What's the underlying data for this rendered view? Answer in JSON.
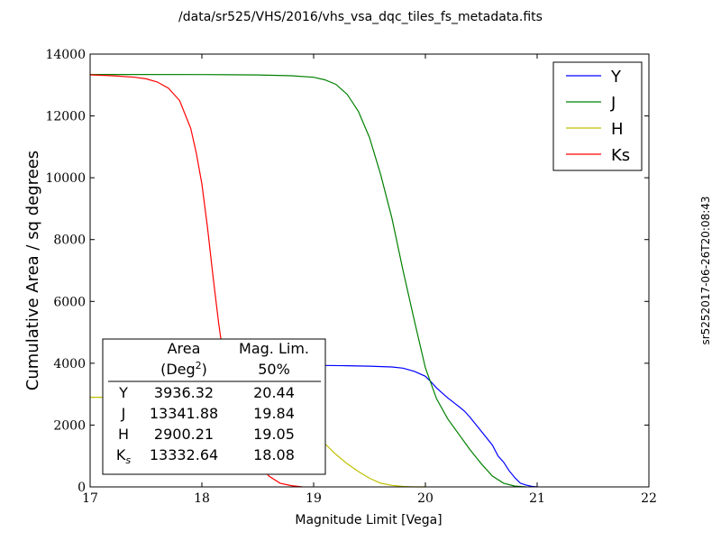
{
  "chart_data": {
    "type": "line",
    "title": "/data/sr525/VHS/2016/vhs_vsa_dqc_tiles_fs_metadata.fits",
    "xlabel": "Magnitude Limit [Vega]",
    "ylabel": "Cumulative Area / sq degrees",
    "side_label": "sr5252017-06-26T20:08:43",
    "xlim": [
      17,
      22
    ],
    "ylim": [
      0,
      14000
    ],
    "xticks": [
      17,
      18,
      19,
      20,
      21,
      22
    ],
    "yticks": [
      0,
      2000,
      4000,
      6000,
      8000,
      10000,
      12000,
      14000
    ],
    "grid": false,
    "legend_position": "top-right",
    "series": [
      {
        "name": "Y",
        "color": "#0000ff",
        "points": [
          [
            18.35,
            3936
          ],
          [
            18.6,
            3936
          ],
          [
            19.0,
            3932
          ],
          [
            19.3,
            3920
          ],
          [
            19.5,
            3905
          ],
          [
            19.7,
            3880
          ],
          [
            19.8,
            3840
          ],
          [
            19.9,
            3740
          ],
          [
            20.0,
            3580
          ],
          [
            20.05,
            3400
          ],
          [
            20.1,
            3200
          ],
          [
            20.2,
            2880
          ],
          [
            20.3,
            2600
          ],
          [
            20.35,
            2450
          ],
          [
            20.4,
            2250
          ],
          [
            20.5,
            1800
          ],
          [
            20.6,
            1350
          ],
          [
            20.65,
            1000
          ],
          [
            20.7,
            800
          ],
          [
            20.75,
            520
          ],
          [
            20.8,
            300
          ],
          [
            20.85,
            120
          ],
          [
            20.9,
            60
          ],
          [
            20.95,
            20
          ],
          [
            21.0,
            0
          ]
        ]
      },
      {
        "name": "J",
        "color": "#008000",
        "points": [
          [
            17.0,
            13340
          ],
          [
            18.0,
            13338
          ],
          [
            18.5,
            13325
          ],
          [
            18.8,
            13300
          ],
          [
            19.0,
            13250
          ],
          [
            19.1,
            13170
          ],
          [
            19.2,
            13020
          ],
          [
            19.3,
            12700
          ],
          [
            19.4,
            12150
          ],
          [
            19.5,
            11300
          ],
          [
            19.6,
            10100
          ],
          [
            19.7,
            8700
          ],
          [
            19.8,
            7000
          ],
          [
            19.9,
            5400
          ],
          [
            20.0,
            3850
          ],
          [
            20.1,
            2850
          ],
          [
            20.2,
            2200
          ],
          [
            20.3,
            1700
          ],
          [
            20.4,
            1200
          ],
          [
            20.5,
            750
          ],
          [
            20.6,
            350
          ],
          [
            20.7,
            120
          ],
          [
            20.8,
            25
          ],
          [
            20.9,
            0
          ]
        ]
      },
      {
        "name": "H",
        "color": "#bfbf00",
        "points": [
          [
            17.0,
            2900
          ],
          [
            17.5,
            2900
          ],
          [
            18.0,
            2895
          ],
          [
            18.2,
            2880
          ],
          [
            18.4,
            2840
          ],
          [
            18.6,
            2700
          ],
          [
            18.75,
            2450
          ],
          [
            18.9,
            2100
          ],
          [
            19.0,
            1750
          ],
          [
            19.1,
            1400
          ],
          [
            19.2,
            1050
          ],
          [
            19.3,
            750
          ],
          [
            19.4,
            500
          ],
          [
            19.5,
            280
          ],
          [
            19.6,
            120
          ],
          [
            19.7,
            50
          ],
          [
            19.8,
            15
          ],
          [
            19.9,
            0
          ],
          [
            20.0,
            0
          ]
        ]
      },
      {
        "name": "Ks",
        "color": "#ff0000",
        "points": [
          [
            17.0,
            13330
          ],
          [
            17.2,
            13300
          ],
          [
            17.4,
            13250
          ],
          [
            17.5,
            13200
          ],
          [
            17.6,
            13100
          ],
          [
            17.7,
            12900
          ],
          [
            17.8,
            12500
          ],
          [
            17.9,
            11600
          ],
          [
            17.95,
            10800
          ],
          [
            18.0,
            9800
          ],
          [
            18.05,
            8400
          ],
          [
            18.1,
            6800
          ],
          [
            18.15,
            5300
          ],
          [
            18.2,
            4000
          ],
          [
            18.3,
            2500
          ],
          [
            18.4,
            1500
          ],
          [
            18.5,
            800
          ],
          [
            18.6,
            350
          ],
          [
            18.7,
            120
          ],
          [
            18.8,
            40
          ],
          [
            18.9,
            0
          ]
        ]
      }
    ],
    "table": {
      "header_area_line1": "Area",
      "header_area_line2": "(Deg",
      "header_area_sup": "2",
      "header_area_close": ")",
      "header_lim_line1": "Mag. Lim.",
      "header_lim_line2": "50%",
      "rows": [
        {
          "band": "Y",
          "band_sub": "",
          "area": "3936.32",
          "lim": "20.44"
        },
        {
          "band": "J",
          "band_sub": "",
          "area": "13341.88",
          "lim": "19.84"
        },
        {
          "band": "H",
          "band_sub": "",
          "area": "2900.21",
          "lim": "19.05"
        },
        {
          "band": "K",
          "band_sub": "s",
          "area": "13332.64",
          "lim": "18.08"
        }
      ]
    }
  }
}
